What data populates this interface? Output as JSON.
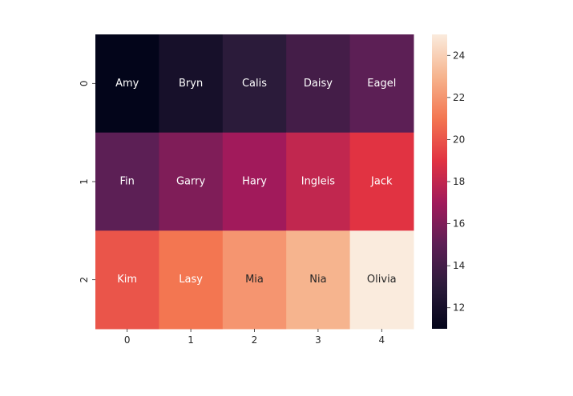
{
  "chart_data": {
    "type": "heatmap",
    "rows": [
      "0",
      "1",
      "2"
    ],
    "columns": [
      "0",
      "1",
      "2",
      "3",
      "4"
    ],
    "values": [
      [
        11,
        12,
        13,
        14,
        15
      ],
      [
        15,
        16,
        17,
        18,
        19
      ],
      [
        20,
        21,
        22,
        23,
        25
      ]
    ],
    "annotations": [
      [
        "Amy",
        "Bryn",
        "Calis",
        "Daisy",
        "Eagel"
      ],
      [
        "Fin",
        "Garry",
        "Hary",
        "Ingleis",
        "Jack"
      ],
      [
        "Kim",
        "Lasy",
        "Mia",
        "Nia",
        "Olivia"
      ]
    ],
    "colorbar": {
      "min": 11,
      "max": 25,
      "ticks": [
        "12",
        "14",
        "16",
        "18",
        "20",
        "22",
        "24"
      ],
      "colormap": "rocket",
      "stops": [
        "#03051a",
        "#2b1b3a",
        "#5c1f55",
        "#a11a5b",
        "#e13342",
        "#f37651",
        "#f6b48e",
        "#faebdd"
      ]
    },
    "grid": false,
    "legend": "colorbar-right"
  }
}
